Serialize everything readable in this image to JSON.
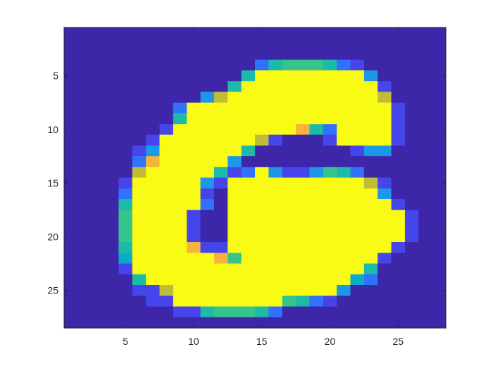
{
  "chart_data": {
    "type": "heatmap",
    "title": "",
    "xlabel": "",
    "ylabel": "",
    "colormap": "parula",
    "clim": [
      0,
      1
    ],
    "xlim": [
      0.5,
      28.5
    ],
    "ylim": [
      0.5,
      28.5
    ],
    "y_direction": "reverse",
    "grid": false,
    "legend": "none",
    "xticks": [
      5,
      10,
      15,
      20,
      25
    ],
    "yticks": [
      5,
      10,
      15,
      20,
      25
    ],
    "xtick_labels": [
      "5",
      "10",
      "15",
      "20",
      "25"
    ],
    "ytick_labels": [
      "5",
      "10",
      "15",
      "20",
      "25"
    ],
    "colors": {
      "low": "#3e26a8",
      "high": "#f9fb15",
      "axis": "#262626",
      "background": "#ffffff"
    },
    "matrix": [
      [
        0,
        0,
        0,
        0,
        0,
        0,
        0,
        0,
        0,
        0,
        0,
        0,
        0,
        0,
        0,
        0,
        0,
        0,
        0,
        0,
        0,
        0,
        0,
        0,
        0,
        0,
        0,
        0
      ],
      [
        0,
        0,
        0,
        0,
        0,
        0,
        0,
        0,
        0,
        0,
        0,
        0,
        0,
        0,
        0,
        0,
        0,
        0,
        0,
        0,
        0,
        0,
        0,
        0,
        0,
        0,
        0,
        0
      ],
      [
        0,
        0,
        0,
        0,
        0,
        0,
        0,
        0,
        0,
        0,
        0,
        0,
        0,
        0,
        0,
        0,
        0,
        0,
        0,
        0,
        0,
        0,
        0,
        0,
        0,
        0,
        0,
        0
      ],
      [
        0,
        0,
        0,
        0,
        0,
        0,
        0,
        0,
        0,
        0,
        0,
        0,
        0,
        0,
        0.2,
        0.5,
        0.6,
        0.6,
        0.6,
        0.5,
        0.2,
        0.1,
        0,
        0,
        0,
        0,
        0,
        0
      ],
      [
        0,
        0,
        0,
        0,
        0,
        0,
        0,
        0,
        0,
        0,
        0,
        0,
        0,
        0.5,
        1,
        1,
        1,
        1,
        1,
        1,
        1,
        1,
        0.3,
        0,
        0,
        0,
        0,
        0
      ],
      [
        0,
        0,
        0,
        0,
        0,
        0,
        0,
        0,
        0,
        0,
        0,
        0,
        0.5,
        1,
        1,
        1,
        1,
        1,
        1,
        1,
        1,
        1,
        1,
        0.1,
        0,
        0,
        0,
        0
      ],
      [
        0,
        0,
        0,
        0,
        0,
        0,
        0,
        0,
        0,
        0,
        0.3,
        0.8,
        1,
        1,
        1,
        1,
        1,
        1,
        1,
        1,
        1,
        1,
        1,
        0.8,
        0,
        0,
        0,
        0
      ],
      [
        0,
        0,
        0,
        0,
        0,
        0,
        0,
        0,
        0.2,
        1,
        1,
        1,
        1,
        1,
        1,
        1,
        1,
        1,
        1,
        1,
        1,
        1,
        1,
        1,
        0.1,
        0,
        0,
        0
      ],
      [
        0,
        0,
        0,
        0,
        0,
        0,
        0,
        0,
        0.5,
        1,
        1,
        1,
        1,
        1,
        1,
        1,
        1,
        1,
        1,
        1,
        1,
        1,
        1,
        1,
        0.1,
        0,
        0,
        0
      ],
      [
        0,
        0,
        0,
        0,
        0,
        0,
        0,
        0.1,
        1,
        1,
        1,
        1,
        1,
        1,
        1,
        1,
        1,
        0.9,
        0.5,
        0.2,
        1,
        1,
        1,
        1,
        0.1,
        0,
        0,
        0
      ],
      [
        0,
        0,
        0,
        0,
        0,
        0,
        0.1,
        1,
        1,
        1,
        1,
        1,
        1,
        1,
        0.8,
        0.1,
        0,
        0,
        0,
        0.1,
        1,
        1,
        1,
        1,
        0.1,
        0,
        0,
        0
      ],
      [
        0,
        0,
        0,
        0,
        0,
        0.1,
        0.3,
        1,
        1,
        1,
        1,
        1,
        1,
        0.5,
        0,
        0,
        0,
        0,
        0,
        0,
        0,
        0.1,
        0.3,
        0.3,
        0,
        0,
        0,
        0
      ],
      [
        0,
        0,
        0,
        0,
        0,
        0.2,
        0.9,
        1,
        1,
        1,
        1,
        1,
        0.3,
        0,
        0,
        0,
        0,
        0,
        0,
        0,
        0,
        0,
        0,
        0,
        0,
        0,
        0,
        0
      ],
      [
        0,
        0,
        0,
        0,
        0,
        0.8,
        1,
        1,
        1,
        1,
        1,
        0.5,
        0.1,
        0.2,
        1,
        0.3,
        0.1,
        0.1,
        0.3,
        0.6,
        0.5,
        0.2,
        0,
        0,
        0,
        0,
        0,
        0
      ],
      [
        0,
        0,
        0,
        0,
        0.1,
        1,
        1,
        1,
        1,
        1,
        0.3,
        0.1,
        1,
        1,
        1,
        1,
        1,
        1,
        1,
        1,
        1,
        1,
        0.8,
        0.1,
        0,
        0,
        0,
        0
      ],
      [
        0,
        0,
        0,
        0,
        0.2,
        1,
        1,
        1,
        1,
        1,
        0.1,
        0,
        1,
        1,
        1,
        1,
        1,
        1,
        1,
        1,
        1,
        1,
        1,
        0.3,
        0,
        0,
        0,
        0
      ],
      [
        0,
        0,
        0,
        0,
        0.5,
        1,
        1,
        1,
        1,
        1,
        0.2,
        0,
        1,
        1,
        1,
        1,
        1,
        1,
        1,
        1,
        1,
        1,
        1,
        1,
        0.1,
        0,
        0,
        0
      ],
      [
        0,
        0,
        0,
        0,
        0.6,
        1,
        1,
        1,
        1,
        0.1,
        0,
        0,
        1,
        1,
        1,
        1,
        1,
        1,
        1,
        1,
        1,
        1,
        1,
        1,
        1,
        0.1,
        0,
        0
      ],
      [
        0,
        0,
        0,
        0,
        0.6,
        1,
        1,
        1,
        1,
        0.1,
        0,
        0,
        1,
        1,
        1,
        1,
        1,
        1,
        1,
        1,
        1,
        1,
        1,
        1,
        1,
        0.1,
        0,
        0
      ],
      [
        0,
        0,
        0,
        0,
        0.6,
        1,
        1,
        1,
        1,
        0.1,
        0,
        0,
        1,
        1,
        1,
        1,
        1,
        1,
        1,
        1,
        1,
        1,
        1,
        1,
        1,
        0.1,
        0,
        0
      ],
      [
        0,
        0,
        0,
        0,
        0.5,
        1,
        1,
        1,
        1,
        0.9,
        0.1,
        0.1,
        1,
        1,
        1,
        1,
        1,
        1,
        1,
        1,
        1,
        1,
        1,
        1,
        0.1,
        0,
        0,
        0
      ],
      [
        0,
        0,
        0,
        0,
        0.4,
        1,
        1,
        1,
        1,
        1,
        1,
        0.9,
        0.6,
        1,
        1,
        1,
        1,
        1,
        1,
        1,
        1,
        1,
        1,
        0.1,
        0,
        0,
        0,
        0
      ],
      [
        0,
        0,
        0,
        0,
        0.1,
        1,
        1,
        1,
        1,
        1,
        1,
        1,
        1,
        1,
        1,
        1,
        1,
        1,
        1,
        1,
        1,
        1,
        0.5,
        0,
        0,
        0,
        0,
        0
      ],
      [
        0,
        0,
        0,
        0,
        0,
        0.5,
        1,
        1,
        1,
        1,
        1,
        1,
        1,
        1,
        1,
        1,
        1,
        1,
        1,
        1,
        1,
        0.4,
        0.2,
        0,
        0,
        0,
        0,
        0
      ],
      [
        0,
        0,
        0,
        0,
        0,
        0.1,
        0.1,
        0.8,
        1,
        1,
        1,
        1,
        1,
        1,
        1,
        1,
        1,
        1,
        1,
        1,
        0.3,
        0,
        0,
        0,
        0,
        0,
        0,
        0
      ],
      [
        0,
        0,
        0,
        0,
        0,
        0,
        0.1,
        0.1,
        1,
        1,
        1,
        1,
        1,
        1,
        1,
        1,
        0.6,
        0.5,
        0.2,
        0.1,
        0,
        0,
        0,
        0,
        0,
        0,
        0,
        0
      ],
      [
        0,
        0,
        0,
        0,
        0,
        0,
        0,
        0,
        0.1,
        0.1,
        0.5,
        0.6,
        0.6,
        0.6,
        0.5,
        0.2,
        0,
        0,
        0,
        0,
        0,
        0,
        0,
        0,
        0,
        0,
        0,
        0
      ],
      [
        0,
        0,
        0,
        0,
        0,
        0,
        0,
        0,
        0,
        0,
        0,
        0,
        0,
        0,
        0,
        0,
        0,
        0,
        0,
        0,
        0,
        0,
        0,
        0,
        0,
        0,
        0,
        0
      ]
    ]
  }
}
